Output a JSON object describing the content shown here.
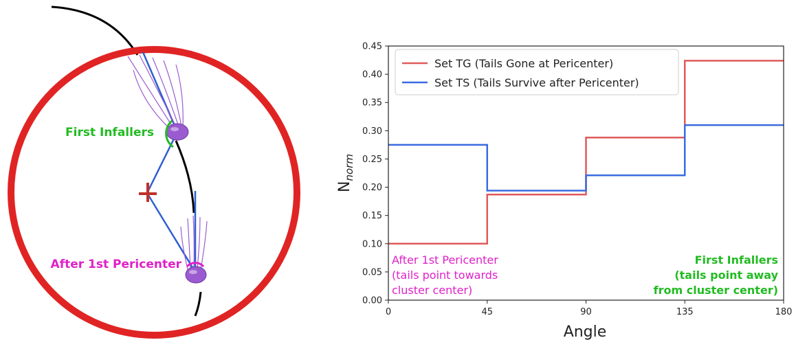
{
  "diagram": {
    "first_infallers_label": "First Infallers",
    "after_pericenter_label": "After 1st Pericenter",
    "colors": {
      "cluster_circle": "#e02424",
      "orbit": "#000000",
      "lines": "#2f5fd0",
      "first_infallers": "#22bb22",
      "after_pericenter": "#e020c8",
      "center_cross": "#c0302a",
      "jellyfish": "#9b5bd0"
    },
    "icons": [
      "jellyfish-galaxy-icon",
      "cluster-center-cross-icon"
    ]
  },
  "chart_data": {
    "type": "line",
    "step": true,
    "xlabel": "Angle",
    "ylabel": "N",
    "ylabel_sub": "norm",
    "xlim": [
      0,
      180
    ],
    "ylim": [
      0.0,
      0.45
    ],
    "xticks": [
      0,
      45,
      90,
      135,
      180
    ],
    "yticks": [
      0.0,
      0.05,
      0.1,
      0.15,
      0.2,
      0.25,
      0.3,
      0.35,
      0.4,
      0.45
    ],
    "bin_edges": [
      0,
      45,
      90,
      135,
      180
    ],
    "series": [
      {
        "name": "Set TG (Tails Gone at Pericenter)",
        "color": "#e05a5a",
        "values": [
          0.1,
          0.187,
          0.288,
          0.424
        ]
      },
      {
        "name": "Set TS (Tails Survive after Pericenter)",
        "color": "#3a6be0",
        "values": [
          0.275,
          0.194,
          0.221,
          0.31
        ]
      }
    ],
    "legend_position": "top-left",
    "grid": false,
    "annotations": {
      "left": {
        "lines": [
          "After 1st Pericenter",
          "(tails point towards",
          "cluster center)"
        ],
        "color": "#e020c8"
      },
      "right": {
        "lines": [
          "First Infallers",
          "(tails point away",
          "from cluster center)"
        ],
        "color": "#22bb22"
      }
    }
  }
}
